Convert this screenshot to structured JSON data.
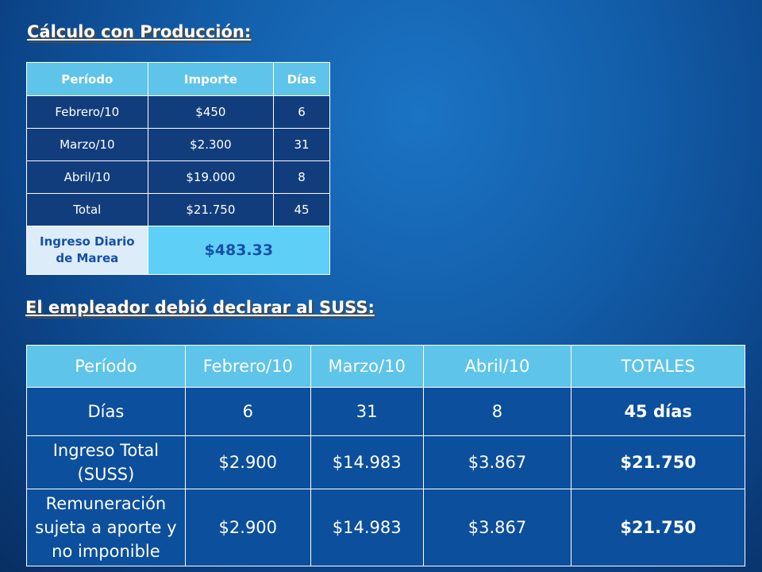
{
  "title_calculo": "Cálculo con Producción:",
  "small_table": {
    "headers": [
      "Período",
      "Importe",
      "Días"
    ],
    "rows": [
      [
        "Febrero/10",
        "$450",
        "6"
      ],
      [
        "Marzo/10",
        "$2.300",
        "31"
      ],
      [
        "Abril/10",
        "$19.000",
        "8"
      ],
      [
        "Total",
        "$21.750",
        "45"
      ]
    ],
    "ingreso_label": "Ingreso Diario de Marea",
    "ingreso_value": "$483.33"
  },
  "title_empleador": "El empleador debió declarar al SUSS:",
  "big_table": {
    "headers": [
      "Período",
      "Febrero/10",
      "Marzo/10",
      "Abril/10",
      "TOTALES"
    ],
    "rows": [
      [
        "Días",
        "6",
        "31",
        "8",
        "45 días"
      ],
      [
        "Ingreso Total (SUSS)",
        "$2.900",
        "$14.983",
        "$3.867",
        "$21.750"
      ],
      [
        "Remuneración sujeta a aporte y no imponible",
        "$2.900",
        "$14.983",
        "$3.867",
        "$21.750"
      ]
    ]
  },
  "colors": {
    "background": "#135fab",
    "header_fill": "#5ec4ea",
    "body_fill": "#0c4f9c",
    "accent_text": "#1650a6"
  }
}
